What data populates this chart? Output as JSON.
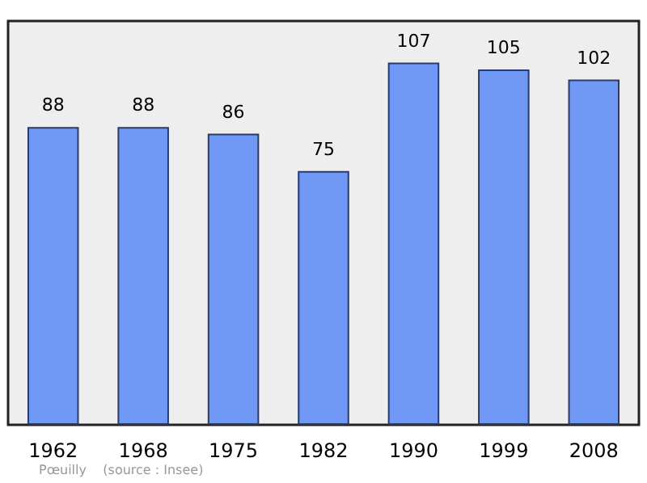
{
  "chart_data": {
    "type": "bar",
    "categories": [
      "1962",
      "1968",
      "1975",
      "1982",
      "1990",
      "1999",
      "2008"
    ],
    "values": [
      88,
      88,
      86,
      75,
      107,
      105,
      102
    ],
    "color": "#7099f5",
    "data_labels": true,
    "annotations": [
      "Pœuilly    (source : Insee)"
    ]
  }
}
